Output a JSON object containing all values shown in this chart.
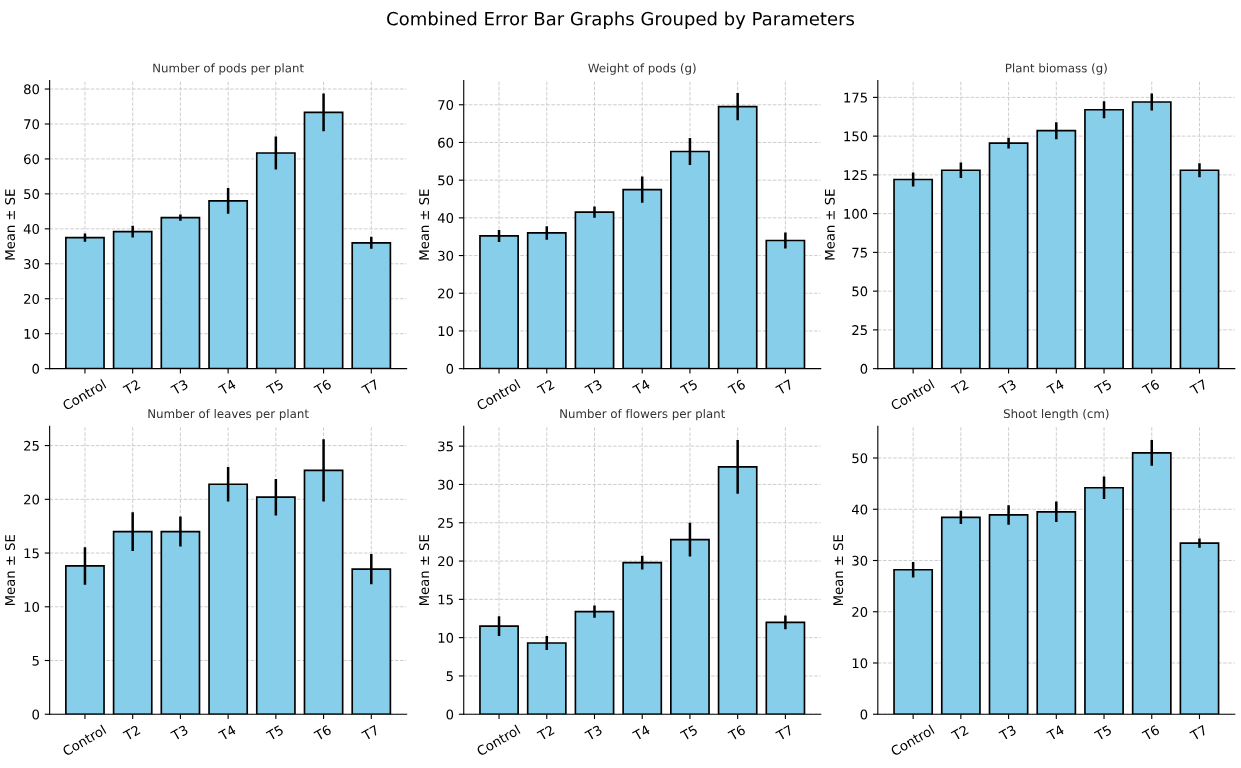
{
  "chart_data": [
    {
      "type": "bar",
      "annotations": [
        "Combined Error Bar Graphs Grouped by Parameters"
      ],
      "title": "Number of pods per plant",
      "ylabel": "Mean ± SE",
      "categories": [
        "Control",
        "T2",
        "T3",
        "T4",
        "T5",
        "T6",
        "T7"
      ],
      "values": [
        37.5,
        39.2,
        43.2,
        48.0,
        61.7,
        73.3,
        36.0
      ],
      "errors": [
        1.2,
        1.7,
        0.9,
        3.7,
        4.7,
        5.4,
        1.7
      ],
      "color": "#87ceeb",
      "ylim": [
        0,
        82.4
      ],
      "yticks": [
        0,
        10,
        20,
        30,
        40,
        50,
        60,
        70,
        80
      ],
      "grid": true
    },
    {
      "type": "bar",
      "title": "Weight of pods (g)",
      "ylabel": "Mean ± SE",
      "categories": [
        "Control",
        "T2",
        "T3",
        "T4",
        "T5",
        "T6",
        "T7"
      ],
      "values": [
        35.2,
        36.0,
        41.5,
        47.5,
        57.6,
        69.5,
        34.0
      ],
      "errors": [
        1.6,
        1.8,
        1.5,
        3.5,
        3.6,
        3.6,
        2.1
      ],
      "color": "#87ceeb",
      "ylim": [
        0,
        76.4
      ],
      "yticks": [
        0,
        10,
        20,
        30,
        40,
        50,
        60,
        70
      ],
      "grid": true
    },
    {
      "type": "bar",
      "title": "Plant biomass (g)",
      "ylabel": "Mean ± SE",
      "categories": [
        "Control",
        "T2",
        "T3",
        "T4",
        "T5",
        "T6",
        "T7"
      ],
      "values": [
        122,
        128,
        145.5,
        153.5,
        167,
        172,
        128
      ],
      "errors": [
        4.5,
        5,
        3.5,
        5.5,
        5.5,
        5.5,
        4.5
      ],
      "color": "#87ceeb",
      "ylim": [
        0,
        185.8
      ],
      "yticks": [
        0,
        25,
        50,
        75,
        100,
        125,
        150,
        175
      ],
      "grid": true
    },
    {
      "type": "bar",
      "title": "Number of leaves per plant",
      "ylabel": "Mean ± SE",
      "categories": [
        "Control",
        "T2",
        "T3",
        "T4",
        "T5",
        "T6",
        "T7"
      ],
      "values": [
        13.8,
        17.0,
        17.0,
        21.4,
        20.2,
        22.7,
        13.5
      ],
      "errors": [
        1.75,
        1.8,
        1.4,
        1.6,
        1.7,
        2.9,
        1.4
      ],
      "color": "#87ceeb",
      "ylim": [
        0,
        26.8
      ],
      "yticks": [
        0,
        5,
        10,
        15,
        20,
        25
      ],
      "grid": true
    },
    {
      "type": "bar",
      "title": "Number of flowers per plant",
      "ylabel": "Mean ± SE",
      "categories": [
        "Control",
        "T2",
        "T3",
        "T4",
        "T5",
        "T6",
        "T7"
      ],
      "values": [
        11.5,
        9.3,
        13.4,
        19.8,
        22.8,
        32.3,
        12.0
      ],
      "errors": [
        1.3,
        0.9,
        0.8,
        0.9,
        2.2,
        3.5,
        0.9
      ],
      "color": "#87ceeb",
      "ylim": [
        0,
        37.6
      ],
      "yticks": [
        0,
        5,
        10,
        15,
        20,
        25,
        30,
        35
      ],
      "grid": true
    },
    {
      "type": "bar",
      "title": "Shoot length (cm)",
      "ylabel": "Mean ± SE",
      "categories": [
        "Control",
        "T2",
        "T3",
        "T4",
        "T5",
        "T6",
        "T7"
      ],
      "values": [
        28.2,
        38.4,
        38.9,
        39.5,
        44.2,
        51.0,
        33.4
      ],
      "errors": [
        1.5,
        1.3,
        1.9,
        2.0,
        2.2,
        2.5,
        0.9
      ],
      "color": "#87ceeb",
      "ylim": [
        0,
        56.2
      ],
      "yticks": [
        0,
        10,
        20,
        30,
        40,
        50
      ],
      "grid": true
    }
  ]
}
